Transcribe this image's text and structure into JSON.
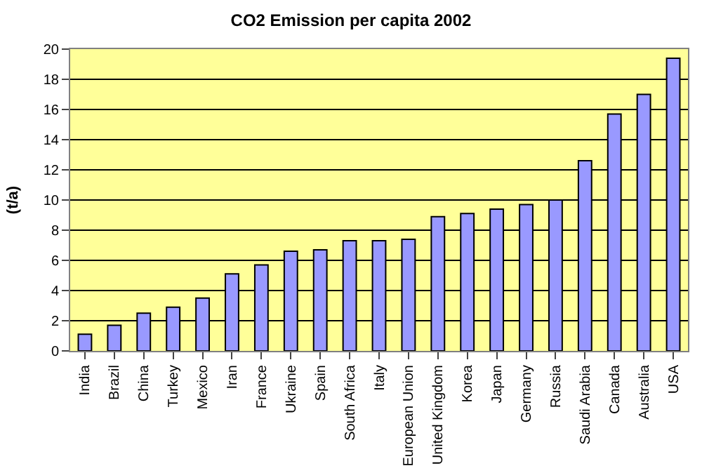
{
  "chart_data": {
    "type": "bar",
    "title": "CO2 Emission per capita 2002",
    "ylabel": "(t/a)",
    "categories": [
      "India",
      "Brazil",
      "China",
      "Turkey",
      "Mexico",
      "Iran",
      "France",
      "Ukraine",
      "Spain",
      "South Africa",
      "Italy",
      "European Union",
      "United Kingdom",
      "Korea",
      "Japan",
      "Germany",
      "Russia",
      "Saudi Arabia",
      "Canada",
      "Australia",
      "USA"
    ],
    "values": [
      1.1,
      1.7,
      2.5,
      2.9,
      3.5,
      5.1,
      5.7,
      6.6,
      6.7,
      7.3,
      7.3,
      7.4,
      8.9,
      9.1,
      9.4,
      9.7,
      10.0,
      12.6,
      15.7,
      17.0,
      19.4
    ],
    "color": "#9999ff",
    "ylim": [
      0,
      20
    ],
    "yticks": [
      0,
      2,
      4,
      6,
      8,
      10,
      12,
      14,
      16,
      18,
      20
    ],
    "grid": "y",
    "legend": false
  }
}
